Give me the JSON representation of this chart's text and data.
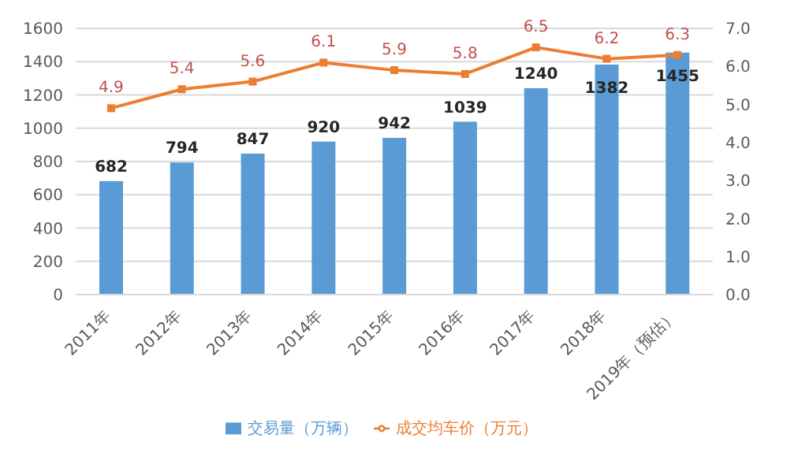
{
  "chart_data": {
    "type": "bar",
    "categories": [
      "2011年",
      "2012年",
      "2013年",
      "2014年",
      "2015年",
      "2016年",
      "2017年",
      "2018年",
      "2019年（预估）"
    ],
    "series": [
      {
        "name": "交易量（万辆）",
        "color": "#5b9bd5",
        "values": [
          682,
          794,
          847,
          920,
          942,
          1039,
          1240,
          1382,
          1455
        ]
      },
      {
        "name": "成交均车价（万元）",
        "type": "line",
        "axis": "y2",
        "color": "#ed7d31",
        "marker": "square",
        "values": [
          4.9,
          5.4,
          5.6,
          6.1,
          5.9,
          5.8,
          6.5,
          6.2,
          6.3
        ]
      }
    ],
    "ylim": [
      0,
      1600
    ],
    "yticks": [
      0,
      200,
      400,
      600,
      800,
      1000,
      1200,
      1400,
      1600
    ],
    "y2lim": [
      0,
      7
    ],
    "y2ticks": [
      {
        "value": 0,
        "label": "0.0"
      },
      {
        "value": 1,
        "label": "1.0"
      },
      {
        "value": 2,
        "label": "2.0"
      },
      {
        "value": 3,
        "label": "3.0"
      },
      {
        "value": 4,
        "label": "4.0"
      },
      {
        "value": 5,
        "label": "5.0"
      },
      {
        "value": 6,
        "label": "6.0"
      },
      {
        "value": 7,
        "label": "7.0"
      }
    ],
    "grid": "y",
    "legend": "bottom",
    "data_labels": true
  }
}
